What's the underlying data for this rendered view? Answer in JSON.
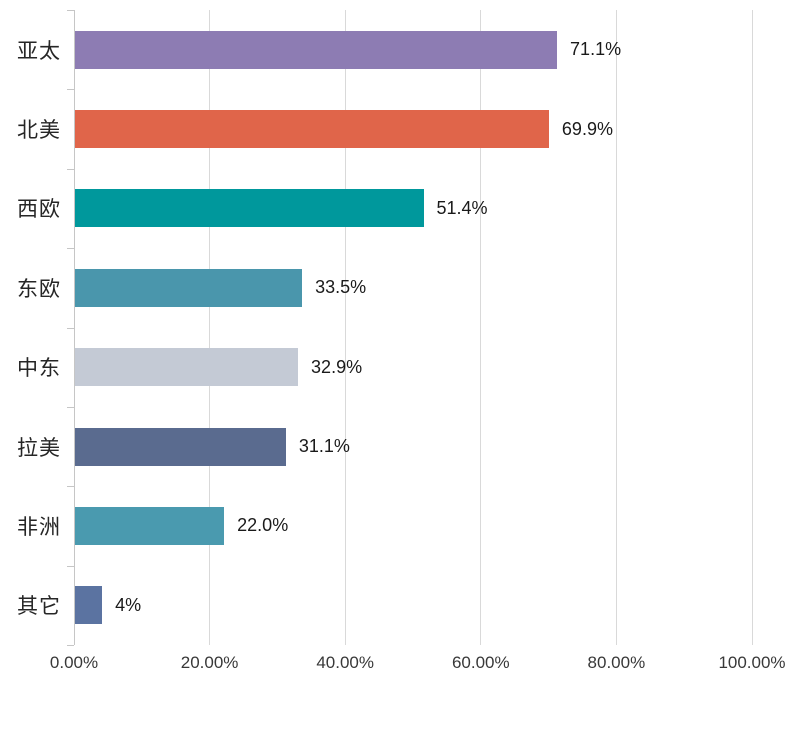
{
  "chart_data": {
    "type": "bar",
    "orientation": "horizontal",
    "title": "",
    "xlabel": "",
    "ylabel": "",
    "categories": [
      "亚太",
      "北美",
      "西欧",
      "东欧",
      "中东",
      "拉美",
      "非洲",
      "其它"
    ],
    "values": [
      71.1,
      69.9,
      51.4,
      33.5,
      32.9,
      31.1,
      22.0,
      4
    ],
    "value_labels": [
      "71.1%",
      "69.9%",
      "51.4%",
      "33.5%",
      "32.9%",
      "31.1%",
      "22.0%",
      "4%"
    ],
    "bar_colors": [
      "#8d7cb3",
      "#e0654a",
      "#00989c",
      "#4a96ac",
      "#c4cad5",
      "#5a6b8f",
      "#4a9aaf",
      "#5b73a1"
    ],
    "xlim": [
      0,
      100
    ],
    "x_tick_values": [
      0,
      20,
      40,
      60,
      80,
      100
    ],
    "x_tick_labels": [
      "0.00%",
      "20.00%",
      "40.00%",
      "60.00%",
      "80.00%",
      "100.00%"
    ],
    "grid": "vertical-gridlines-on",
    "legend": "none"
  },
  "styles": {
    "background": "#ffffff",
    "gridline_color": "#d9d9d9",
    "axis_line_color": "#c6c6c6",
    "category_label_color": "#262626",
    "value_label_color": "#1a1a1a",
    "tick_label_color": "#383838"
  }
}
